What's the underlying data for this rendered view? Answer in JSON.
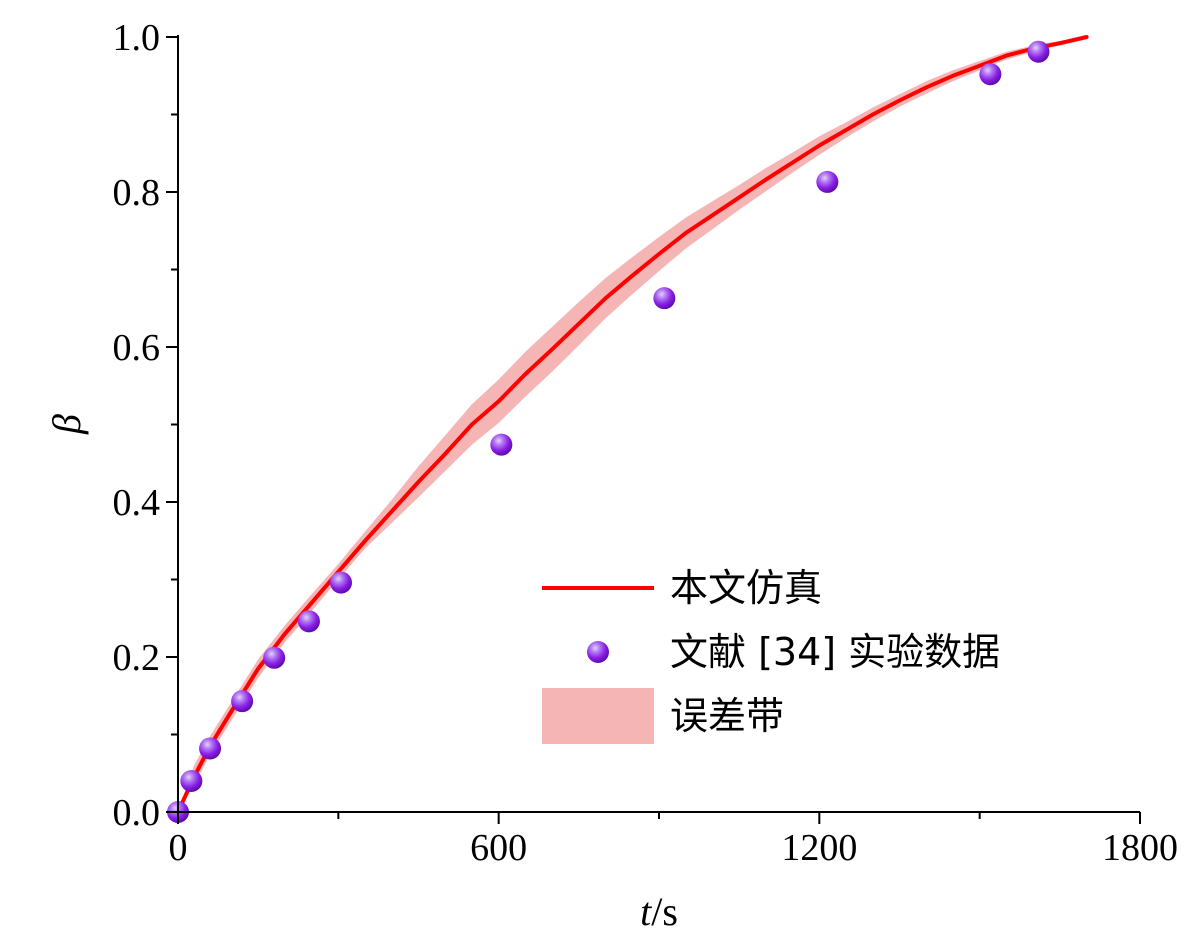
{
  "chart_data": {
    "type": "line",
    "xlabel_italic": "t",
    "xlabel_unit": "/s",
    "ylabel": "β",
    "xlim": [
      0,
      1800
    ],
    "ylim": [
      0.0,
      1.0
    ],
    "x_ticks": [
      "0",
      "600",
      "1200",
      "1800"
    ],
    "y_ticks": [
      "0.0",
      "0.2",
      "0.4",
      "0.6",
      "0.8",
      "1.0"
    ],
    "x_tick_values": [
      0,
      600,
      1200,
      1800
    ],
    "y_tick_values": [
      0.0,
      0.2,
      0.4,
      0.6,
      0.8,
      1.0
    ],
    "colors": {
      "line": "#ff0000",
      "band": "#f5b5b5",
      "marker": "#8a1fe6",
      "marker_highlight": "#e6d0ff"
    },
    "legend_position": "lower-right",
    "legend": [
      {
        "label": "本文仿真",
        "kind": "line"
      },
      {
        "label": "文献 [34] 实验数据",
        "kind": "marker"
      },
      {
        "label": "误差带",
        "kind": "band"
      }
    ],
    "series": [
      {
        "name": "本文仿真",
        "kind": "line",
        "x": [
          0,
          30,
          60,
          100,
          150,
          200,
          250,
          300,
          350,
          400,
          450,
          500,
          550,
          600,
          650,
          700,
          750,
          800,
          850,
          900,
          950,
          1000,
          1050,
          1100,
          1150,
          1200,
          1250,
          1300,
          1350,
          1400,
          1450,
          1500,
          1550,
          1600,
          1650,
          1700
        ],
        "y": [
          0.0,
          0.045,
          0.085,
          0.13,
          0.185,
          0.23,
          0.27,
          0.31,
          0.35,
          0.388,
          0.426,
          0.462,
          0.5,
          0.53,
          0.565,
          0.597,
          0.63,
          0.663,
          0.692,
          0.72,
          0.747,
          0.77,
          0.793,
          0.816,
          0.838,
          0.86,
          0.88,
          0.9,
          0.918,
          0.935,
          0.95,
          0.963,
          0.976,
          0.985,
          0.992,
          1.0
        ]
      },
      {
        "name": "文献 [34] 实验数据",
        "kind": "scatter",
        "x": [
          0,
          25,
          60,
          120,
          180,
          245,
          305,
          605,
          910,
          1215,
          1520,
          1610
        ],
        "y": [
          0.0,
          0.04,
          0.082,
          0.143,
          0.199,
          0.246,
          0.296,
          0.474,
          0.663,
          0.813,
          0.952,
          0.981
        ]
      },
      {
        "name": "误差带",
        "kind": "band",
        "x": [
          0,
          30,
          60,
          100,
          150,
          200,
          250,
          300,
          350,
          400,
          450,
          500,
          550,
          600,
          650,
          700,
          750,
          800,
          850,
          900,
          950,
          1000,
          1050,
          1100,
          1150,
          1200,
          1250,
          1300,
          1350,
          1400,
          1450,
          1500,
          1550,
          1600,
          1650,
          1700
        ],
        "lower": [
          0.0,
          0.035,
          0.074,
          0.118,
          0.173,
          0.219,
          0.259,
          0.3,
          0.34,
          0.373,
          0.406,
          0.44,
          0.474,
          0.502,
          0.536,
          0.568,
          0.602,
          0.637,
          0.668,
          0.698,
          0.727,
          0.752,
          0.777,
          0.801,
          0.825,
          0.848,
          0.87,
          0.891,
          0.91,
          0.927,
          0.943,
          0.957,
          0.971,
          0.981,
          0.989,
          0.997
        ],
        "upper": [
          0.0,
          0.06,
          0.098,
          0.142,
          0.197,
          0.241,
          0.281,
          0.32,
          0.362,
          0.403,
          0.446,
          0.486,
          0.526,
          0.558,
          0.594,
          0.626,
          0.658,
          0.689,
          0.716,
          0.742,
          0.767,
          0.788,
          0.809,
          0.831,
          0.851,
          0.872,
          0.89,
          0.909,
          0.926,
          0.943,
          0.957,
          0.969,
          0.981,
          0.989,
          0.995,
          1.0
        ]
      }
    ]
  }
}
